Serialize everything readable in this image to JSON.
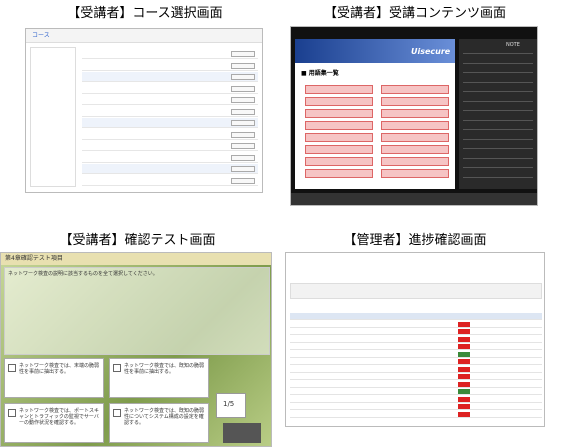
{
  "panels": [
    {
      "caption": "【受講者】コース選択画面",
      "screen": {
        "header": "コース"
      }
    },
    {
      "caption": "【受講者】受講コンテンツ画面",
      "screen": {
        "logo": "Uisecure",
        "heading": "■ 用語集一覧",
        "tab": "NOTE"
      }
    },
    {
      "caption": "【受講者】確認テスト画面",
      "screen": {
        "header": "第4章確認テスト項目",
        "question": "ネットワーク検査の説明に該当するものを全て選択してください。",
        "options": [
          "ネットワーク検査では、末端の脆弱性を事前に抽出する。",
          "ネットワーク検査では、既知の脆弱性を事前に抽出する。",
          "ネットワーク検査では、ポートスキャンとトラフィックの監視でサーバーの動作状況を確認する。",
          "ネットワーク検査では、既知の脆弱性についてシステム構成の設定を確認する。"
        ],
        "counter": "1/5"
      }
    },
    {
      "caption": "【管理者】進捗確認画面",
      "screen": {}
    }
  ]
}
